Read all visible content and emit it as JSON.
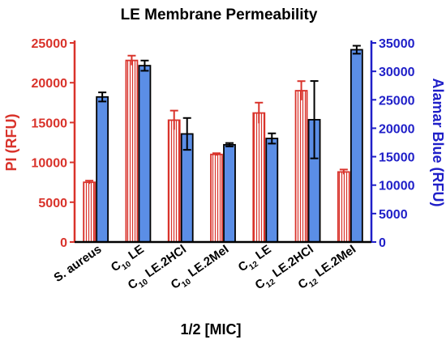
{
  "chart_data": {
    "type": "bar",
    "title": "LE Membrane Permeability",
    "xlabel": "1/2 [MIC]",
    "ylabel_left": "PI (RFU)",
    "ylabel_right": "Alamar Blue (RFU)",
    "ylim_left": [
      0,
      25000
    ],
    "ylim_right": [
      0,
      35000
    ],
    "yticks_left": [
      "0",
      "5000",
      "10000",
      "15000",
      "20000",
      "25000"
    ],
    "yticks_right": [
      "0",
      "5000",
      "10000",
      "15000",
      "20000",
      "25000",
      "30000",
      "35000"
    ],
    "grid": false,
    "categories": [
      {
        "pre": "S. aureus",
        "sub": "",
        "post": ""
      },
      {
        "pre": "C",
        "sub": "10",
        "post": " LE"
      },
      {
        "pre": "C",
        "sub": "10",
        "post": " LE.2HCl"
      },
      {
        "pre": "C",
        "sub": "10",
        "post": " LE.2MeI"
      },
      {
        "pre": "C",
        "sub": "12",
        "post": " LE"
      },
      {
        "pre": "C",
        "sub": "12",
        "post": " LE.2HCl"
      },
      {
        "pre": "C",
        "sub": "12",
        "post": " LE.2MeI"
      }
    ],
    "series": [
      {
        "name": "PI (RFU)",
        "axis": "left",
        "color": "#d9332b",
        "fill": "hatched",
        "values": [
          7500,
          22800,
          15300,
          11000,
          16200,
          19000,
          8800
        ],
        "errors": [
          200,
          600,
          1200,
          150,
          1300,
          1200,
          300
        ]
      },
      {
        "name": "Alamar Blue (RFU)",
        "axis": "right",
        "color": "#5b8ee6",
        "fill": "solid",
        "values": [
          25500,
          31000,
          19000,
          17100,
          18200,
          21500,
          33800
        ],
        "errors": [
          800,
          900,
          2800,
          300,
          900,
          6800,
          700
        ]
      }
    ],
    "left_axis_color": "#d9332b",
    "right_axis_color": "#1f1fc8"
  }
}
